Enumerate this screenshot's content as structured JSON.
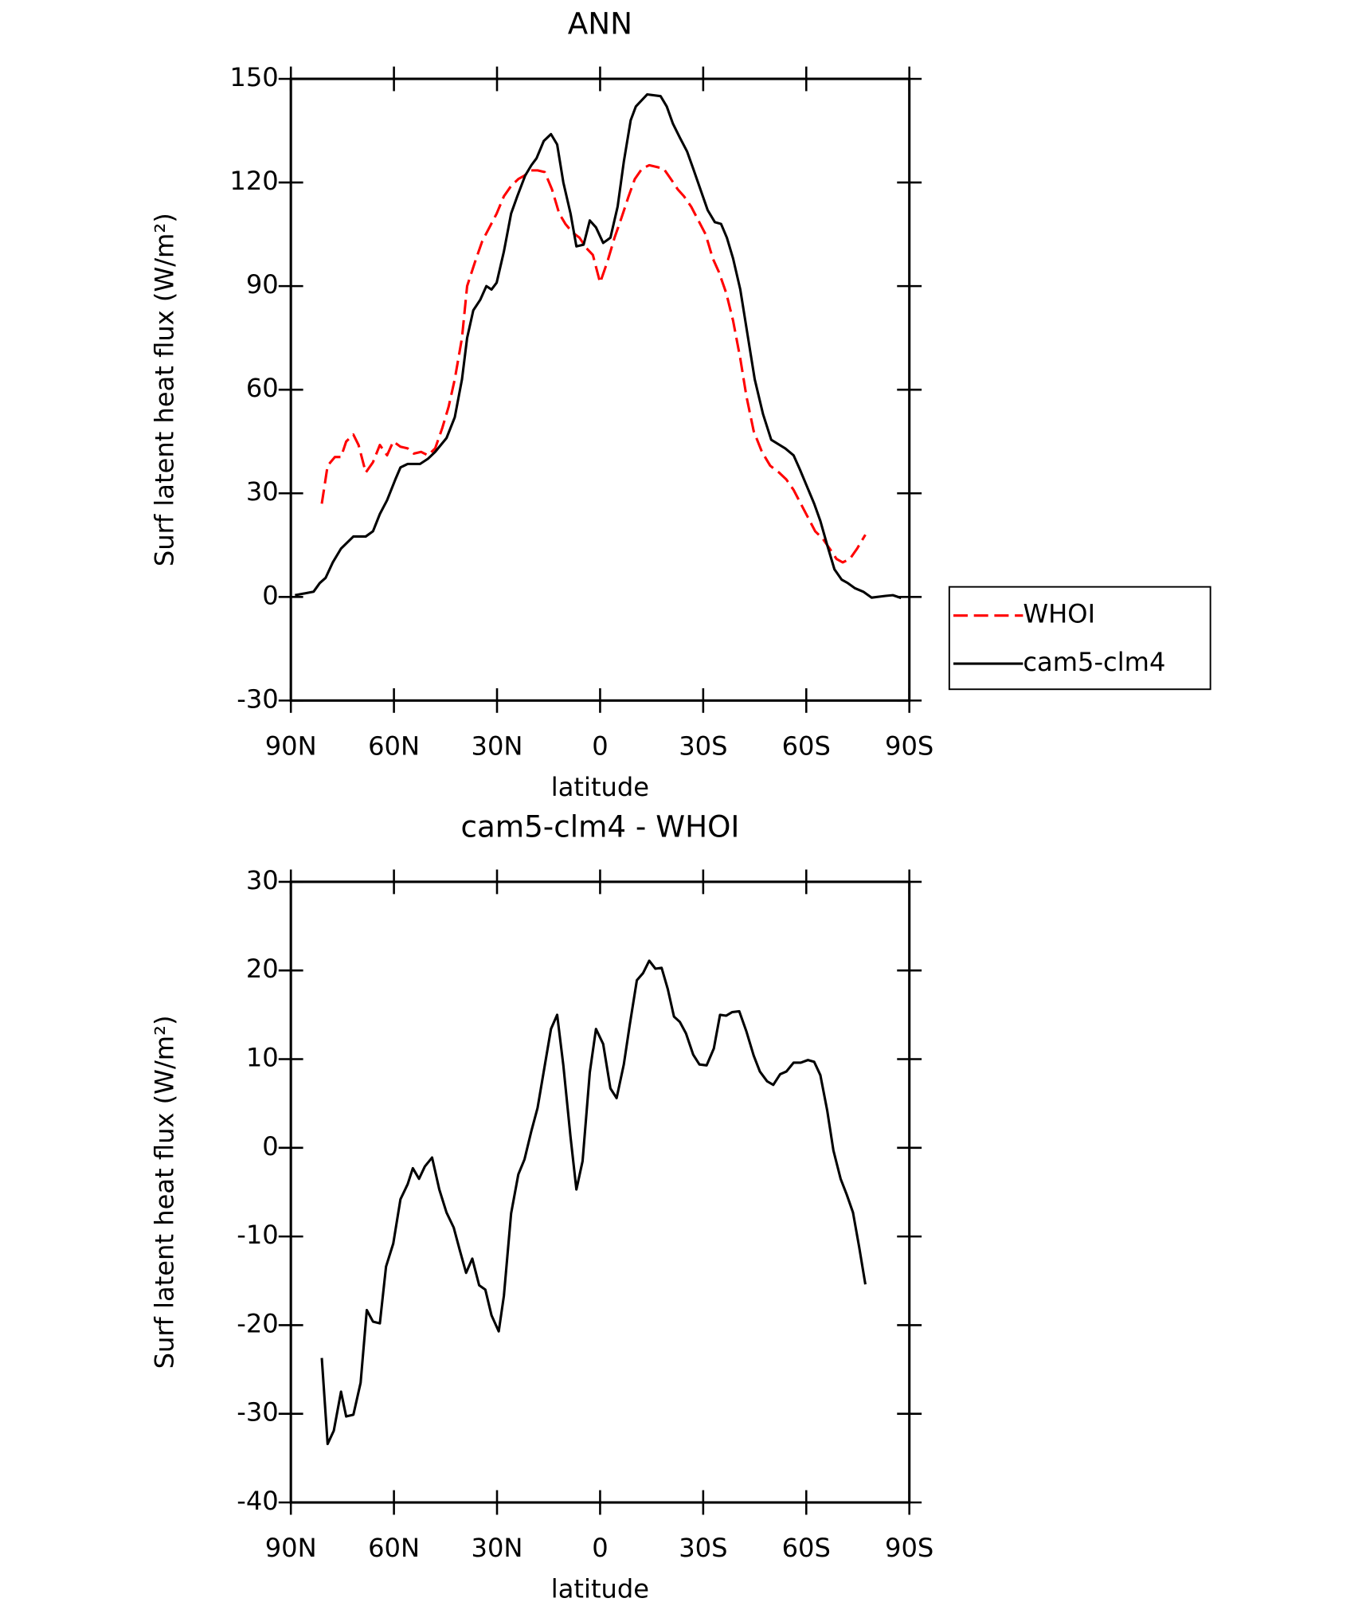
{
  "chart_data": [
    {
      "type": "line",
      "title": "ANN",
      "xlabel": "latitude",
      "ylabel": "Surf latent heat flux (W/m²)",
      "xlim": [
        90,
        -90
      ],
      "xticks": [
        {
          "value": 90,
          "label": "90N"
        },
        {
          "value": 60,
          "label": "60N"
        },
        {
          "value": 30,
          "label": "30N"
        },
        0,
        {
          "value": -30,
          "label": "30S"
        },
        {
          "value": -60,
          "label": "60S"
        },
        {
          "value": -90,
          "label": "90S"
        }
      ],
      "ylim": [
        -30,
        150
      ],
      "yticks": [
        -30,
        0,
        30,
        60,
        90,
        120,
        150
      ],
      "legend": "right",
      "series": [
        {
          "name": "WHOI",
          "color": "#ff0000",
          "linestyle": "dashed",
          "x": [
            81.0,
            79.3,
            77.2,
            75.4,
            73.9,
            71.8,
            70.3,
            68.2,
            66.1,
            64.1,
            62.0,
            60.2,
            58.1,
            56.0,
            54.2,
            52.1,
            50.1,
            48.0,
            45.9,
            44.1,
            42.3,
            40.2,
            38.7,
            36.4,
            34.3,
            32.2,
            30.1,
            28.0,
            25.9,
            23.8,
            22.0,
            20.3,
            18.2,
            16.1,
            14.0,
            11.9,
            10.1,
            8.0,
            6.0,
            4.0,
            2.1,
            0.0,
            -2.1,
            -4.2,
            -6.3,
            -8.3,
            -10.1,
            -12.2,
            -14.3,
            -16.4,
            -18.5,
            -20.6,
            -22.6,
            -24.4,
            -26.5,
            -28.6,
            -30.7,
            -32.8,
            -34.6,
            -36.7,
            -38.7,
            -40.8,
            -42.6,
            -44.7,
            -47.1,
            -49.5,
            -52.1,
            -54.2,
            -56.3,
            -58.4,
            -60.5,
            -62.6,
            -64.7,
            -66.8,
            -68.8,
            -70.6,
            -72.7,
            -74.8,
            -77.2
          ],
          "values": [
            27,
            38,
            40.5,
            40.5,
            45,
            47,
            44,
            36,
            39,
            44,
            41,
            45,
            43.5,
            43,
            41.5,
            42,
            41,
            43,
            49,
            55,
            63,
            75,
            90,
            97,
            103,
            107,
            111,
            116,
            119,
            121,
            122,
            123.5,
            123.5,
            123,
            118,
            111,
            108,
            105.5,
            104,
            101,
            99,
            91,
            97,
            104,
            110,
            116,
            121,
            124,
            125,
            124.5,
            124,
            121,
            118,
            116,
            113,
            109,
            105,
            98,
            94,
            88,
            80,
            69,
            58,
            48,
            42,
            38,
            36,
            34,
            31,
            27,
            23,
            19,
            17,
            14,
            11,
            10,
            11,
            14,
            18
          ]
        },
        {
          "name": "cam5-clm4",
          "color": "#000000",
          "linestyle": "solid",
          "x": [
            88.8,
            83.4,
            81.6,
            79.9,
            77.8,
            75.4,
            71.8,
            68.2,
            66.1,
            64.1,
            62.0,
            59.6,
            58.1,
            56.0,
            52.4,
            50.1,
            48.0,
            44.7,
            42.3,
            40.2,
            38.7,
            36.9,
            34.9,
            33.1,
            31.6,
            30.1,
            28.0,
            25.9,
            24.1,
            21.8,
            20.0,
            18.5,
            16.4,
            14.3,
            12.5,
            10.7,
            8.6,
            6.9,
            4.8,
            3.0,
            1.2,
            -0.9,
            -3.0,
            -5.1,
            -6.9,
            -8.9,
            -10.4,
            -13.7,
            -17.6,
            -19.4,
            -21.2,
            -23.2,
            -25.3,
            -27.1,
            -29.2,
            -31.3,
            -33.4,
            -35.2,
            -36.9,
            -38.7,
            -40.8,
            -42.9,
            -45.0,
            -47.4,
            -49.8,
            -53.9,
            -56.3,
            -58.1,
            -60.2,
            -62.3,
            -64.1,
            -66.1,
            -68.2,
            -70.3,
            -72.1,
            -74.2,
            -76.6,
            -79.0,
            -83.1,
            -85.2,
            -87.6
          ],
          "values": [
            0.5,
            1.5,
            4,
            5.5,
            10,
            14,
            17.5,
            17.5,
            19,
            24,
            28,
            34,
            37.5,
            38.5,
            38.5,
            40,
            42,
            46,
            52,
            63,
            75,
            83,
            86,
            90,
            89,
            91,
            100,
            111,
            116,
            122,
            125,
            127,
            132,
            134,
            131,
            120,
            111,
            101.5,
            102,
            109,
            107,
            102.5,
            104,
            113,
            126,
            138,
            142,
            145.5,
            145,
            142,
            137,
            133,
            129,
            124,
            118,
            112,
            108.5,
            108,
            104,
            98,
            89,
            76,
            63,
            53,
            45.5,
            43,
            41,
            37,
            32,
            27,
            22,
            15,
            8,
            5,
            4,
            2.5,
            1.5,
            -0.2,
            0.3,
            0.5,
            -0.3
          ]
        }
      ]
    },
    {
      "type": "line",
      "title": "cam5-clm4 - WHOI",
      "xlabel": "latitude",
      "ylabel": "Surf latent heat flux (W/m²)",
      "xlim": [
        90,
        -90
      ],
      "xticks": [
        {
          "value": 90,
          "label": "90N"
        },
        {
          "value": 60,
          "label": "60N"
        },
        {
          "value": 30,
          "label": "30N"
        },
        0,
        {
          "value": -30,
          "label": "30S"
        },
        {
          "value": -60,
          "label": "60S"
        },
        {
          "value": -90,
          "label": "90S"
        }
      ],
      "ylim": [
        -40,
        30
      ],
      "yticks": [
        -40,
        -30,
        -20,
        -10,
        0,
        10,
        20,
        30
      ],
      "series": [
        {
          "color": "#000000",
          "linestyle": "solid",
          "x": [
            81.0,
            79.3,
            77.5,
            75.4,
            73.9,
            71.8,
            69.7,
            67.9,
            66.1,
            64.1,
            62.3,
            60.2,
            58.1,
            56.0,
            54.5,
            52.7,
            51.0,
            48.9,
            46.8,
            44.7,
            42.6,
            40.8,
            39.0,
            37.2,
            35.2,
            33.4,
            31.6,
            29.5,
            28.0,
            25.9,
            23.8,
            22.0,
            20.0,
            18.2,
            16.1,
            14.3,
            12.5,
            10.7,
            8.6,
            6.9,
            5.1,
            3.0,
            1.2,
            -0.9,
            -3.0,
            -4.8,
            -6.9,
            -8.6,
            -10.7,
            -12.5,
            -14.3,
            -16.1,
            -17.9,
            -19.7,
            -21.5,
            -23.2,
            -25.0,
            -27.1,
            -28.9,
            -31.0,
            -33.1,
            -34.9,
            -36.7,
            -38.4,
            -40.5,
            -42.6,
            -44.7,
            -46.5,
            -48.6,
            -50.4,
            -52.4,
            -54.2,
            -56.3,
            -58.4,
            -60.5,
            -62.3,
            -64.1,
            -66.1,
            -67.9,
            -70.0,
            -71.8,
            -73.6,
            -75.4,
            -77.2
          ],
          "values": [
            -23.7,
            -33.4,
            -31.9,
            -27.5,
            -30.3,
            -30.1,
            -26.5,
            -18.3,
            -19.6,
            -19.8,
            -13.4,
            -10.8,
            -5.8,
            -4.1,
            -2.3,
            -3.5,
            -2.1,
            -1.1,
            -4.7,
            -7.3,
            -9.0,
            -11.6,
            -14.1,
            -12.5,
            -15.5,
            -16.0,
            -18.9,
            -20.7,
            -16.7,
            -7.4,
            -3.0,
            -1.3,
            1.9,
            4.5,
            9.3,
            13.4,
            15.0,
            9.3,
            1.2,
            -4.7,
            -1.5,
            8.5,
            13.4,
            11.7,
            6.7,
            5.6,
            9.4,
            13.8,
            18.9,
            19.7,
            21.1,
            20.2,
            20.3,
            17.9,
            14.8,
            14.2,
            12.9,
            10.5,
            9.4,
            9.3,
            11.2,
            15.0,
            14.9,
            15.3,
            15.4,
            13.1,
            10.4,
            8.6,
            7.5,
            7.1,
            8.3,
            8.6,
            9.6,
            9.6,
            9.9,
            9.7,
            8.2,
            4.2,
            -0.3,
            -3.5,
            -5.3,
            -7.3,
            -11.2,
            -15.4
          ]
        }
      ]
    }
  ]
}
